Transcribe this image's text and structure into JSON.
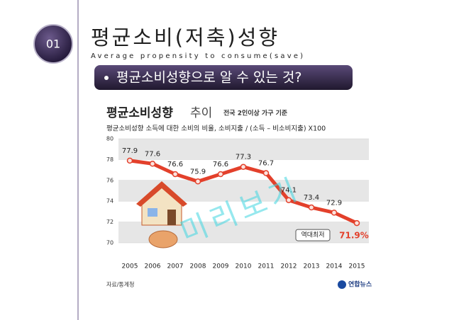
{
  "slide": {
    "number": "01",
    "title": "평균소비(저축)성향",
    "subtitle": "Average propensity to consume(save)",
    "bullet": "평균소비성향으로 알 수 있는 것?",
    "watermark": "미리보기"
  },
  "chart_data": {
    "type": "line",
    "title": "평균소비성향",
    "title_suffix": "추이",
    "subtitle": "전국 2인이상 가구 기준",
    "description": "평균소비성향 소득에 대한 소비의 비율, 소비지출 / (소득 – 비소비지출) X100",
    "categories": [
      "2005",
      "2006",
      "2007",
      "2008",
      "2009",
      "2010",
      "2011",
      "2012",
      "2013",
      "2014",
      "2015"
    ],
    "values": [
      77.9,
      77.6,
      76.6,
      75.9,
      76.6,
      77.3,
      76.7,
      74.1,
      73.4,
      72.9,
      71.9
    ],
    "value_labels": [
      "77.9",
      "77.6",
      "76.6",
      "75.9",
      "76.6",
      "77.3",
      "76.7",
      "74.1",
      "73.4",
      "72.9",
      "71.9%"
    ],
    "color": "#e3402b",
    "ylim": [
      70,
      80
    ],
    "yticks": [
      70,
      72,
      74,
      76,
      78,
      80
    ],
    "annotation": "역대최저",
    "source": "자료/통계청",
    "publisher": "연합뉴스"
  }
}
